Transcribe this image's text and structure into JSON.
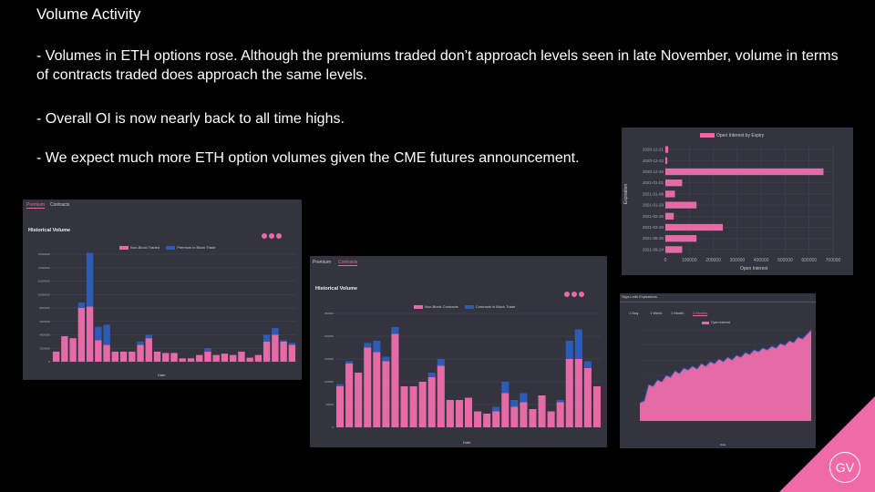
{
  "slide": {
    "title": "Volume Activity",
    "bullets": [
      "- Volumes in ETH options rose. Although the premiums traded don’t approach levels seen in late November, volume in terms of contracts traded does approach the same levels.",
      "- Overall OI is now nearly back to all time highs.",
      "- We expect much more ETH option volumes given the CME futures announcement."
    ],
    "logo": "GV"
  },
  "colors": {
    "pink": "#e56aa6",
    "blue": "#2d5bb8",
    "panel": "#34343f",
    "accent": "#f06aa8"
  },
  "panel1": {
    "tabs": [
      "Premium",
      "Contracts"
    ],
    "active_tab": "Premium",
    "title": "Historical Volume",
    "legend": [
      "Non-Block Traded",
      "Premium in Block Trade"
    ],
    "xlabel": "Date"
  },
  "panel2": {
    "tabs": [
      "Premium",
      "Contracts"
    ],
    "active_tab": "Contracts",
    "title": "Historical Volume",
    "legend": [
      "Non-Block Contracts",
      "Contracts in Block Trade"
    ],
    "xlabel": "Date"
  },
  "panel3": {
    "legend": "Open Interest by Expiry",
    "xlabel": "Open Interest",
    "ylabel": "Expiration"
  },
  "panel4": {
    "title": "Sign-Leith Expirations",
    "tabs": [
      "1 Day",
      "1 Week",
      "1 Month",
      "3 Months"
    ],
    "active_tab": "3 Months",
    "legend": "Open Interest",
    "xlabel": "Date"
  },
  "chart_data": [
    {
      "type": "bar",
      "title": "Historical Volume",
      "stacked": true,
      "xlabel": "Date",
      "ylim": [
        0,
        16000000
      ],
      "ticks": [
        "0",
        "2000000",
        "4000000",
        "6000000",
        "8000000",
        "10000000",
        "12000000",
        "14000000",
        "16000000"
      ],
      "series": [
        {
          "name": "Non-Block Traded",
          "values": [
            1500000,
            3800000,
            3500000,
            8000000,
            8200000,
            3200000,
            2500000,
            1500000,
            1500000,
            1500000,
            2500000,
            3500000,
            1500000,
            1300000,
            1300000,
            500000,
            500000,
            1000000,
            1500000,
            1000000,
            1200000,
            1000000,
            1500000,
            600000,
            1000000,
            3000000,
            4000000,
            3000000,
            2500000
          ]
        },
        {
          "name": "Premium in Block Trade",
          "values": [
            0,
            0,
            0,
            800000,
            8000000,
            2000000,
            3000000,
            0,
            0,
            0,
            500000,
            500000,
            0,
            0,
            0,
            0,
            0,
            0,
            500000,
            0,
            0,
            0,
            0,
            0,
            0,
            1000000,
            1000000,
            200000,
            300000
          ]
        }
      ]
    },
    {
      "type": "bar",
      "title": "Historical Volume",
      "stacked": true,
      "xlabel": "Date",
      "ylim": [
        0,
        250000
      ],
      "ticks": [
        "0",
        "50000",
        "100000",
        "150000",
        "200000",
        "250000"
      ],
      "series": [
        {
          "name": "Non-Block Contracts",
          "values": [
            90000,
            140000,
            120000,
            175000,
            165000,
            145000,
            205000,
            90000,
            90000,
            100000,
            110000,
            135000,
            60000,
            60000,
            65000,
            35000,
            30000,
            35000,
            75000,
            45000,
            55000,
            40000,
            70000,
            35000,
            55000,
            150000,
            150000,
            130000,
            90000
          ]
        },
        {
          "name": "Contracts in Block Trade",
          "values": [
            5000,
            5000,
            0,
            10000,
            25000,
            10000,
            15000,
            0,
            0,
            0,
            10000,
            15000,
            0,
            0,
            0,
            0,
            0,
            10000,
            25000,
            15000,
            20000,
            0,
            0,
            0,
            5000,
            40000,
            65000,
            15000,
            0
          ]
        }
      ]
    },
    {
      "type": "bar",
      "orientation": "horizontal",
      "title": "Open Interest by Expiry",
      "xlabel": "Open Interest",
      "ylabel": "Expiration",
      "categories": [
        "2020-12-21",
        "2020-12-22",
        "2020-12-25",
        "2021-01-01",
        "2021-01-08",
        "2021-01-29",
        "2021-02-26",
        "2021-03-26",
        "2021-06-25",
        "2021-09-24"
      ],
      "values": [
        12000,
        8000,
        660000,
        70000,
        40000,
        130000,
        35000,
        240000,
        130000,
        70000
      ],
      "xlim": [
        0,
        700000
      ],
      "ticks": [
        "0",
        "100000",
        "200000",
        "300000",
        "400000",
        "500000",
        "600000",
        "700000"
      ]
    },
    {
      "type": "area",
      "title": "Open Interest",
      "xlabel": "Date",
      "values": [
        20,
        22,
        40,
        38,
        45,
        43,
        50,
        48,
        55,
        52,
        58,
        56,
        60,
        57,
        63,
        60,
        65,
        63,
        68,
        65,
        70,
        67,
        72,
        70,
        75,
        73,
        78,
        76,
        80,
        78,
        82,
        80,
        85,
        83,
        88,
        86,
        92,
        90,
        95,
        100
      ]
    }
  ]
}
